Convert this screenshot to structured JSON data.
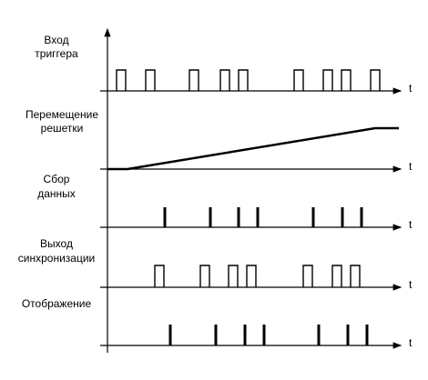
{
  "rows": [
    {
      "label": [
        "Вход",
        "триггера"
      ],
      "axis": "t"
    },
    {
      "label": [
        "Перемещение",
        "решетки"
      ],
      "axis": "t"
    },
    {
      "label": [
        "Сбор",
        "данных"
      ],
      "axis": "t"
    },
    {
      "label": [
        "Выход",
        "синхронизации"
      ],
      "axis": "t"
    },
    {
      "label": [
        "Отображение"
      ],
      "axis": "t"
    }
  ]
}
